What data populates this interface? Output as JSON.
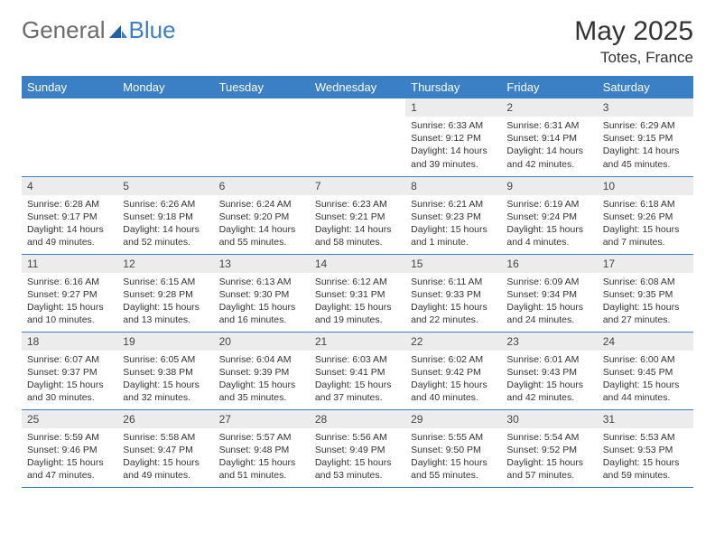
{
  "logo": {
    "part1": "General",
    "part2": "Blue"
  },
  "header": {
    "title": "May 2025",
    "location": "Totes, France"
  },
  "colors": {
    "header_bg": "#3b7fc4",
    "header_text": "#ffffff",
    "daynum_bg": "#ececec",
    "border": "#3b7fc4",
    "logo_gray": "#6b6b6b",
    "logo_blue": "#3b7fc4",
    "text": "#333333",
    "background": "#ffffff"
  },
  "weekdays": [
    "Sunday",
    "Monday",
    "Tuesday",
    "Wednesday",
    "Thursday",
    "Friday",
    "Saturday"
  ],
  "weeks": [
    [
      null,
      null,
      null,
      null,
      {
        "n": "1",
        "sr": "Sunrise: 6:33 AM",
        "ss": "Sunset: 9:12 PM",
        "dl": "Daylight: 14 hours and 39 minutes."
      },
      {
        "n": "2",
        "sr": "Sunrise: 6:31 AM",
        "ss": "Sunset: 9:14 PM",
        "dl": "Daylight: 14 hours and 42 minutes."
      },
      {
        "n": "3",
        "sr": "Sunrise: 6:29 AM",
        "ss": "Sunset: 9:15 PM",
        "dl": "Daylight: 14 hours and 45 minutes."
      }
    ],
    [
      {
        "n": "4",
        "sr": "Sunrise: 6:28 AM",
        "ss": "Sunset: 9:17 PM",
        "dl": "Daylight: 14 hours and 49 minutes."
      },
      {
        "n": "5",
        "sr": "Sunrise: 6:26 AM",
        "ss": "Sunset: 9:18 PM",
        "dl": "Daylight: 14 hours and 52 minutes."
      },
      {
        "n": "6",
        "sr": "Sunrise: 6:24 AM",
        "ss": "Sunset: 9:20 PM",
        "dl": "Daylight: 14 hours and 55 minutes."
      },
      {
        "n": "7",
        "sr": "Sunrise: 6:23 AM",
        "ss": "Sunset: 9:21 PM",
        "dl": "Daylight: 14 hours and 58 minutes."
      },
      {
        "n": "8",
        "sr": "Sunrise: 6:21 AM",
        "ss": "Sunset: 9:23 PM",
        "dl": "Daylight: 15 hours and 1 minute."
      },
      {
        "n": "9",
        "sr": "Sunrise: 6:19 AM",
        "ss": "Sunset: 9:24 PM",
        "dl": "Daylight: 15 hours and 4 minutes."
      },
      {
        "n": "10",
        "sr": "Sunrise: 6:18 AM",
        "ss": "Sunset: 9:26 PM",
        "dl": "Daylight: 15 hours and 7 minutes."
      }
    ],
    [
      {
        "n": "11",
        "sr": "Sunrise: 6:16 AM",
        "ss": "Sunset: 9:27 PM",
        "dl": "Daylight: 15 hours and 10 minutes."
      },
      {
        "n": "12",
        "sr": "Sunrise: 6:15 AM",
        "ss": "Sunset: 9:28 PM",
        "dl": "Daylight: 15 hours and 13 minutes."
      },
      {
        "n": "13",
        "sr": "Sunrise: 6:13 AM",
        "ss": "Sunset: 9:30 PM",
        "dl": "Daylight: 15 hours and 16 minutes."
      },
      {
        "n": "14",
        "sr": "Sunrise: 6:12 AM",
        "ss": "Sunset: 9:31 PM",
        "dl": "Daylight: 15 hours and 19 minutes."
      },
      {
        "n": "15",
        "sr": "Sunrise: 6:11 AM",
        "ss": "Sunset: 9:33 PM",
        "dl": "Daylight: 15 hours and 22 minutes."
      },
      {
        "n": "16",
        "sr": "Sunrise: 6:09 AM",
        "ss": "Sunset: 9:34 PM",
        "dl": "Daylight: 15 hours and 24 minutes."
      },
      {
        "n": "17",
        "sr": "Sunrise: 6:08 AM",
        "ss": "Sunset: 9:35 PM",
        "dl": "Daylight: 15 hours and 27 minutes."
      }
    ],
    [
      {
        "n": "18",
        "sr": "Sunrise: 6:07 AM",
        "ss": "Sunset: 9:37 PM",
        "dl": "Daylight: 15 hours and 30 minutes."
      },
      {
        "n": "19",
        "sr": "Sunrise: 6:05 AM",
        "ss": "Sunset: 9:38 PM",
        "dl": "Daylight: 15 hours and 32 minutes."
      },
      {
        "n": "20",
        "sr": "Sunrise: 6:04 AM",
        "ss": "Sunset: 9:39 PM",
        "dl": "Daylight: 15 hours and 35 minutes."
      },
      {
        "n": "21",
        "sr": "Sunrise: 6:03 AM",
        "ss": "Sunset: 9:41 PM",
        "dl": "Daylight: 15 hours and 37 minutes."
      },
      {
        "n": "22",
        "sr": "Sunrise: 6:02 AM",
        "ss": "Sunset: 9:42 PM",
        "dl": "Daylight: 15 hours and 40 minutes."
      },
      {
        "n": "23",
        "sr": "Sunrise: 6:01 AM",
        "ss": "Sunset: 9:43 PM",
        "dl": "Daylight: 15 hours and 42 minutes."
      },
      {
        "n": "24",
        "sr": "Sunrise: 6:00 AM",
        "ss": "Sunset: 9:45 PM",
        "dl": "Daylight: 15 hours and 44 minutes."
      }
    ],
    [
      {
        "n": "25",
        "sr": "Sunrise: 5:59 AM",
        "ss": "Sunset: 9:46 PM",
        "dl": "Daylight: 15 hours and 47 minutes."
      },
      {
        "n": "26",
        "sr": "Sunrise: 5:58 AM",
        "ss": "Sunset: 9:47 PM",
        "dl": "Daylight: 15 hours and 49 minutes."
      },
      {
        "n": "27",
        "sr": "Sunrise: 5:57 AM",
        "ss": "Sunset: 9:48 PM",
        "dl": "Daylight: 15 hours and 51 minutes."
      },
      {
        "n": "28",
        "sr": "Sunrise: 5:56 AM",
        "ss": "Sunset: 9:49 PM",
        "dl": "Daylight: 15 hours and 53 minutes."
      },
      {
        "n": "29",
        "sr": "Sunrise: 5:55 AM",
        "ss": "Sunset: 9:50 PM",
        "dl": "Daylight: 15 hours and 55 minutes."
      },
      {
        "n": "30",
        "sr": "Sunrise: 5:54 AM",
        "ss": "Sunset: 9:52 PM",
        "dl": "Daylight: 15 hours and 57 minutes."
      },
      {
        "n": "31",
        "sr": "Sunrise: 5:53 AM",
        "ss": "Sunset: 9:53 PM",
        "dl": "Daylight: 15 hours and 59 minutes."
      }
    ]
  ]
}
